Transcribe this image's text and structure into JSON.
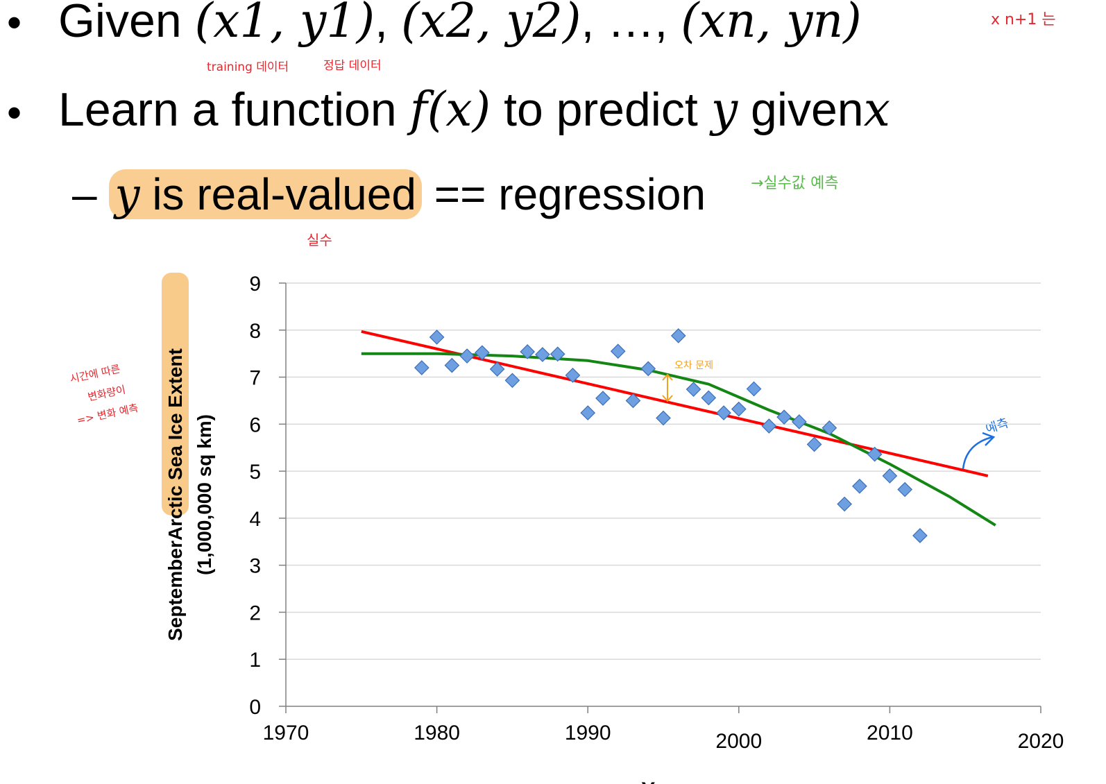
{
  "slide": {
    "line1": {
      "prefix": "Given",
      "pairs": [
        "(x1, y1)",
        "(x2, y2)",
        "…",
        "(xn, yn)"
      ]
    },
    "line2": {
      "text_a": "Learn a function",
      "fx": "f(x)",
      "text_b": "to predict",
      "y": "y",
      "text_c": "given",
      "x": "x"
    },
    "line3": {
      "dash": "–",
      "y": "y",
      "highlight": "is real-valued",
      "rest": "== regression"
    }
  },
  "annotations": {
    "training_data": "training 데이터",
    "answer_data": "정답 데이터",
    "real_number": "실수",
    "real_value_prediction": "→실수값 예측",
    "top_right": "x n+1 는",
    "left_note": [
      "시간에 따른",
      "변화량이",
      "=> 변화 예측"
    ],
    "error": "오차 문제",
    "prediction": "예측"
  },
  "colors": {
    "series": "#6e9fe0",
    "series_edge": "#3a6fb8",
    "linear_fit": "#ff0000",
    "nonlinear_fit": "#138613",
    "grid": "#d9d9d9",
    "highlight": "#f8be6e"
  },
  "chart_data": {
    "type": "scatter",
    "title": "",
    "ylabel_prefix": "September",
    "ylabel_highlight": "Arctic Sea Ice Extent",
    "ylabel_line2": "(1,000,000 sq km)",
    "xlabel": "Year",
    "xlim": [
      1970,
      2020
    ],
    "ylim": [
      0,
      9
    ],
    "xticks": [
      "1970",
      "1980",
      "1990",
      "2000",
      "2010",
      "2020"
    ],
    "yticks": [
      "0",
      "1",
      "2",
      "3",
      "4",
      "5",
      "6",
      "7",
      "8",
      "9"
    ],
    "grid": "horizontal",
    "x": [
      1979,
      1980,
      1981,
      1982,
      1983,
      1984,
      1985,
      1986,
      1987,
      1988,
      1989,
      1990,
      1991,
      1992,
      1993,
      1994,
      1995,
      1996,
      1997,
      1998,
      1999,
      2000,
      2001,
      2002,
      2003,
      2004,
      2005,
      2006,
      2007,
      2008,
      2009,
      2010,
      2011,
      2012
    ],
    "y": [
      7.2,
      7.85,
      7.25,
      7.45,
      7.52,
      7.17,
      6.93,
      7.54,
      7.48,
      7.49,
      7.04,
      6.24,
      6.55,
      7.55,
      6.5,
      7.18,
      6.13,
      7.88,
      6.74,
      6.56,
      6.24,
      6.32,
      6.75,
      5.96,
      6.15,
      6.05,
      5.57,
      5.92,
      4.3,
      4.68,
      5.36,
      4.9,
      4.61,
      3.63
    ],
    "fits": [
      {
        "name": "linear",
        "x": [
          1975,
          2016.5
        ],
        "y": [
          7.97,
          4.9
        ]
      },
      {
        "name": "nonlinear",
        "x": [
          1975,
          1980,
          1985,
          1990,
          1994,
          1998,
          2002,
          2006,
          2010,
          2014,
          2017
        ],
        "y": [
          7.5,
          7.5,
          7.45,
          7.35,
          7.15,
          6.85,
          6.3,
          5.8,
          5.15,
          4.45,
          3.85
        ]
      }
    ]
  }
}
